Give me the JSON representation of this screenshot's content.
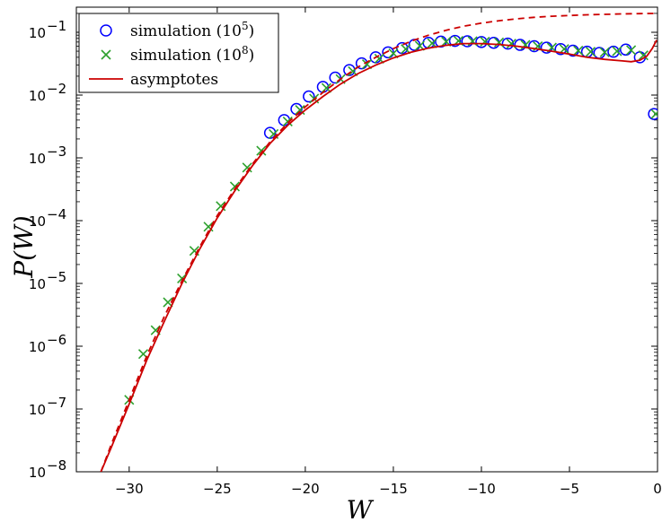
{
  "chart_data": {
    "type": "scatter",
    "xlabel": "W",
    "ylabel": "P(W)",
    "xlim": [
      -33,
      0
    ],
    "ylim_log10": [
      -8,
      -0.6
    ],
    "yscale": "log",
    "x_ticks": [
      -30,
      -25,
      -20,
      -15,
      -10,
      -5,
      0
    ],
    "x_tick_labels": [
      "−30",
      "−25",
      "−20",
      "−15",
      "−10",
      "−5",
      "0"
    ],
    "y_ticks_exp": [
      -8,
      -7,
      -6,
      -5,
      -4,
      -3,
      -2,
      -1
    ],
    "y_tick_labels": [
      {
        "base": "10",
        "exp": "−8"
      },
      {
        "base": "10",
        "exp": "−7"
      },
      {
        "base": "10",
        "exp": "−6"
      },
      {
        "base": "10",
        "exp": "−5"
      },
      {
        "base": "10",
        "exp": "−4"
      },
      {
        "base": "10",
        "exp": "−3"
      },
      {
        "base": "10",
        "exp": "−2"
      },
      {
        "base": "10",
        "exp": "−1"
      }
    ],
    "legend": {
      "position": "top-left",
      "entries": [
        {
          "label": "simulation (10",
          "exp": "5",
          "suffix": ")",
          "marker": "circle",
          "color": "#0000ff"
        },
        {
          "label": "simulation (10",
          "exp": "8",
          "suffix": ")",
          "marker": "cross",
          "color": "#2ca02c"
        },
        {
          "label": "asymptotes",
          "exp": "",
          "suffix": "",
          "marker": "line",
          "color": "#cc0000"
        }
      ]
    },
    "series": [
      {
        "name": "simulation (10^5)",
        "marker": "circle",
        "color": "#0000ff",
        "x": [
          -22.0,
          -21.2,
          -20.5,
          -19.8,
          -19.0,
          -18.3,
          -17.5,
          -16.8,
          -16.0,
          -15.3,
          -14.5,
          -13.8,
          -13.0,
          -12.3,
          -11.5,
          -10.8,
          -10.0,
          -9.3,
          -8.5,
          -7.8,
          -7.0,
          -6.3,
          -5.5,
          -4.8,
          -4.0,
          -3.3,
          -2.5,
          -1.8,
          -1.0,
          -0.2
        ],
        "y": [
          0.0025,
          0.004,
          0.006,
          0.0095,
          0.0135,
          0.019,
          0.025,
          0.032,
          0.04,
          0.048,
          0.056,
          0.063,
          0.068,
          0.071,
          0.073,
          0.072,
          0.07,
          0.068,
          0.066,
          0.063,
          0.06,
          0.057,
          0.054,
          0.051,
          0.049,
          0.047,
          0.049,
          0.053,
          0.04,
          0.005
        ]
      },
      {
        "name": "simulation (10^8)",
        "marker": "cross",
        "color": "#2ca02c",
        "x": [
          -30.0,
          -29.2,
          -28.5,
          -27.8,
          -27.0,
          -26.3,
          -25.5,
          -24.8,
          -24.0,
          -23.3,
          -22.5,
          -21.8,
          -21.0,
          -20.3,
          -19.5,
          -18.8,
          -18.0,
          -17.3,
          -16.5,
          -15.8,
          -15.0,
          -14.3,
          -13.5,
          -12.8,
          -12.0,
          -11.3,
          -10.5,
          -9.8,
          -9.0,
          -8.3,
          -7.5,
          -6.8,
          -6.0,
          -5.3,
          -4.5,
          -3.8,
          -3.0,
          -2.3,
          -1.5,
          -0.8,
          -0.1
        ],
        "y": [
          1.4e-07,
          7.5e-07,
          1.8e-06,
          5e-06,
          1.2e-05,
          3.3e-05,
          8e-05,
          0.00017,
          0.00035,
          0.0007,
          0.0013,
          0.0024,
          0.0038,
          0.0058,
          0.0088,
          0.013,
          0.018,
          0.024,
          0.031,
          0.038,
          0.046,
          0.054,
          0.061,
          0.067,
          0.071,
          0.073,
          0.072,
          0.071,
          0.069,
          0.066,
          0.063,
          0.06,
          0.057,
          0.054,
          0.051,
          0.049,
          0.048,
          0.05,
          0.052,
          0.043,
          0.005
        ]
      },
      {
        "name": "asymptotes (solid)",
        "line": "solid",
        "color": "#cc0000",
        "x": [
          -31.6,
          -31.0,
          -30.0,
          -29.0,
          -28.0,
          -27.0,
          -26.0,
          -25.0,
          -24.0,
          -23.0,
          -22.0,
          -21.0,
          -20.0,
          -19.0,
          -18.0,
          -17.0,
          -16.0,
          -15.0,
          -14.0,
          -13.0,
          -12.0,
          -11.0,
          -10.0,
          -9.0,
          -8.0,
          -7.0,
          -6.0,
          -5.0,
          -4.0,
          -3.0,
          -2.0,
          -1.5,
          -1.0,
          -0.6,
          -0.3,
          -0.05
        ],
        "y": [
          1e-08,
          2.5e-08,
          1.2e-07,
          6e-07,
          2.5e-06,
          1e-05,
          3.5e-05,
          0.00011,
          0.0003,
          0.00075,
          0.0017,
          0.0033,
          0.0058,
          0.0095,
          0.015,
          0.022,
          0.03,
          0.039,
          0.048,
          0.056,
          0.062,
          0.066,
          0.066,
          0.064,
          0.06,
          0.055,
          0.05,
          0.045,
          0.04,
          0.037,
          0.035,
          0.034,
          0.036,
          0.042,
          0.055,
          0.075
        ]
      },
      {
        "name": "asymptotes (dashed)",
        "line": "dashed",
        "color": "#cc0000",
        "x": [
          -31.6,
          -31.0,
          -30.0,
          -29.0,
          -28.0,
          -27.0,
          -26.0,
          -25.0,
          -24.0,
          -23.0,
          -22.0,
          -21.0,
          -20.0,
          -19.0,
          -18.0,
          -17.0,
          -16.0,
          -15.0,
          -14.0,
          -13.0,
          -12.0,
          -11.0,
          -10.0,
          -9.0,
          -8.0,
          -7.0,
          -6.0,
          -5.0,
          -4.0,
          -3.0,
          -2.0,
          -1.0,
          0.0
        ],
        "y": [
          1e-08,
          2.8e-08,
          1.4e-07,
          7e-07,
          3e-06,
          1.1e-05,
          3.8e-05,
          0.00012,
          0.00032,
          0.0008,
          0.0018,
          0.0036,
          0.0065,
          0.011,
          0.018,
          0.028,
          0.04,
          0.055,
          0.072,
          0.09,
          0.108,
          0.125,
          0.14,
          0.153,
          0.164,
          0.173,
          0.18,
          0.185,
          0.19,
          0.193,
          0.196,
          0.198,
          0.2
        ]
      }
    ]
  }
}
